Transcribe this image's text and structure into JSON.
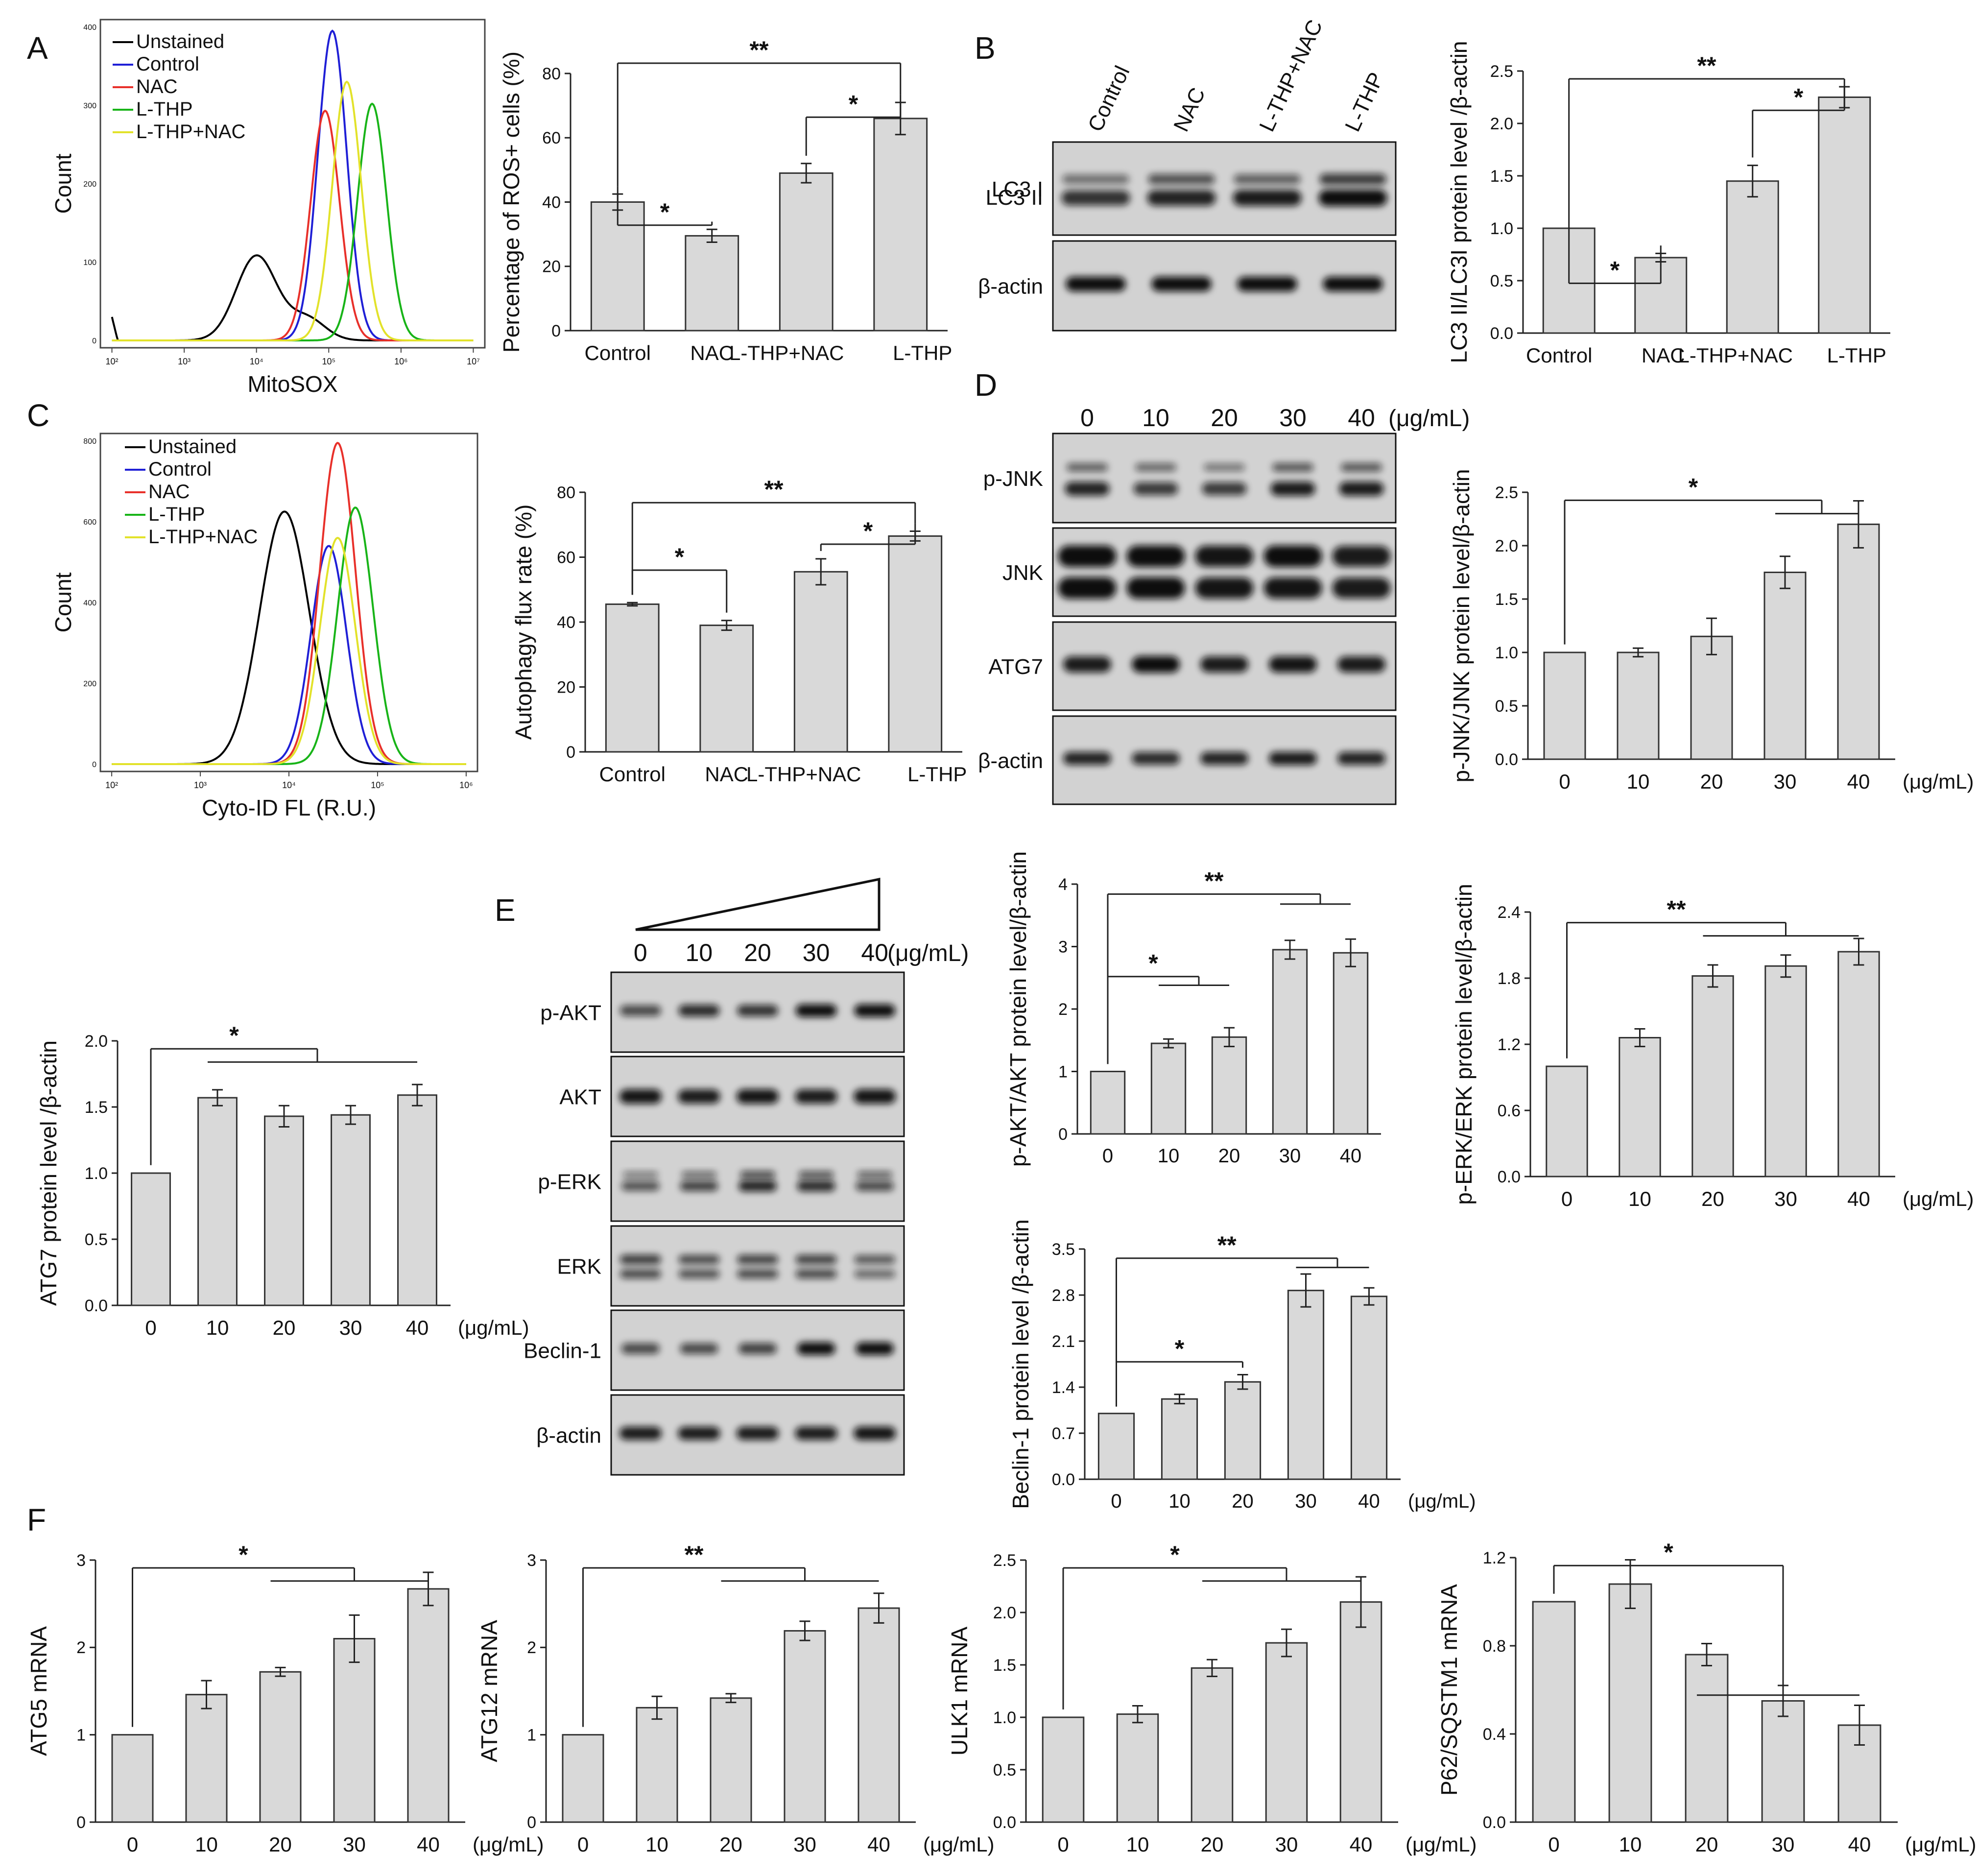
{
  "panel_letters": {
    "A": "A",
    "B": "B",
    "C": "C",
    "D": "D",
    "E": "E",
    "F": "F"
  },
  "dose_unit": "(μg/mL)",
  "chart_data": [
    {
      "id": "A_flow",
      "type": "line",
      "xlabel": "MitoSOX",
      "ylabel": "Count",
      "xtick_labels": [
        "10²",
        "10³",
        "10⁴",
        "10⁵",
        "10⁶",
        "10⁷"
      ],
      "ytick_labels": [
        "0",
        "100",
        "200",
        "300",
        "400"
      ],
      "series": [
        {
          "name": "Unstained",
          "color": "#000000",
          "peak_log": 4.0,
          "peak": 108
        },
        {
          "name": "Control",
          "color": "#1f1fd6",
          "peak_log": 5.05,
          "peak": 395
        },
        {
          "name": "NAC",
          "color": "#e8302a",
          "peak_log": 4.95,
          "peak": 293
        },
        {
          "name": "L-THP",
          "color": "#18b418",
          "peak_log": 5.6,
          "peak": 302
        },
        {
          "name": "L-THP+NAC",
          "color": "#e2e22a",
          "peak_log": 5.25,
          "peak": 330
        }
      ]
    },
    {
      "id": "A_bar",
      "type": "bar",
      "ylabel": "Percentage of ROS+ cells (%)",
      "ylim": [
        0,
        80
      ],
      "yticks": [
        0,
        20,
        40,
        60,
        80
      ],
      "categories": [
        "Control",
        "NAC",
        "L-THP+NAC",
        "L-THP"
      ],
      "values": [
        40,
        29.5,
        49,
        66
      ],
      "errors": [
        2.5,
        2,
        3,
        5
      ],
      "sig": [
        {
          "from": 0,
          "to": 1,
          "label": "*"
        },
        {
          "from": 2,
          "to": 3,
          "label": "*"
        },
        {
          "from": 0,
          "to": 3,
          "label": "**"
        }
      ]
    },
    {
      "id": "B_bar",
      "type": "bar",
      "ylabel": "LC3 II/LC3I protein level /β-actin",
      "ylim": [
        0,
        2.5
      ],
      "yticks": [
        0,
        0.5,
        1,
        1.5,
        2,
        2.5
      ],
      "ytick_labels": [
        "0.0",
        "0.5",
        "1.0",
        "1.5",
        "2.0",
        "2.5"
      ],
      "categories": [
        "Control",
        "NAC",
        "L-THP+NAC",
        "L-THP"
      ],
      "values": [
        1.0,
        0.72,
        1.45,
        2.25
      ],
      "errors": [
        0,
        0.04,
        0.15,
        0.1
      ],
      "sig": [
        {
          "from": 0,
          "to": 1,
          "label": "*"
        },
        {
          "from": 2,
          "to": 3,
          "label": "*"
        },
        {
          "from": 0,
          "to": 3,
          "label": "**"
        }
      ]
    },
    {
      "id": "C_flow",
      "type": "line",
      "xlabel": "Cyto-ID FL (R.U.)",
      "ylabel": "Count",
      "xtick_labels": [
        "10²",
        "10³",
        "10⁴",
        "10⁵",
        "10⁶"
      ],
      "ytick_labels": [
        "0",
        "200",
        "400",
        "600",
        "800"
      ],
      "series": [
        {
          "name": "Unstained",
          "color": "#000000",
          "peak_log": 3.95,
          "peak": 625
        },
        {
          "name": "Control",
          "color": "#1f1fd6",
          "peak_log": 4.45,
          "peak": 540
        },
        {
          "name": "NAC",
          "color": "#e8302a",
          "peak_log": 4.55,
          "peak": 795
        },
        {
          "name": "L-THP",
          "color": "#18b418",
          "peak_log": 4.75,
          "peak": 635
        },
        {
          "name": "L-THP+NAC",
          "color": "#e2e22a",
          "peak_log": 4.55,
          "peak": 560
        }
      ]
    },
    {
      "id": "C_bar",
      "type": "bar",
      "ylabel": "Autophagy flux rate (%)",
      "ylim": [
        0,
        80
      ],
      "yticks": [
        0,
        20,
        40,
        60,
        80
      ],
      "categories": [
        "Control",
        "NAC",
        "L-THP+NAC",
        "L-THP"
      ],
      "values": [
        45.5,
        39,
        55.5,
        66.5
      ],
      "errors": [
        0.5,
        1.5,
        4,
        1.5
      ],
      "sig": [
        {
          "from": 0,
          "to": 1,
          "label": "*"
        },
        {
          "from": 2,
          "to": 3,
          "label": "*"
        },
        {
          "from": 0,
          "to": 3,
          "label": "**"
        }
      ]
    },
    {
      "id": "D_bar",
      "type": "bar",
      "ylabel": "p-JNK/JNK protein level/β-actin",
      "ylim": [
        0,
        2.5
      ],
      "yticks": [
        0,
        0.5,
        1,
        1.5,
        2,
        2.5
      ],
      "ytick_labels": [
        "0.0",
        "0.5",
        "1.0",
        "1.5",
        "2.0",
        "2.5"
      ],
      "categories": [
        "0",
        "10",
        "20",
        "30",
        "40"
      ],
      "values": [
        1.0,
        1.0,
        1.15,
        1.75,
        2.2
      ],
      "errors": [
        0,
        0.04,
        0.17,
        0.15,
        0.22
      ],
      "sig": [
        {
          "from": 0,
          "to": [
            3,
            4
          ],
          "label": "*"
        }
      ]
    },
    {
      "id": "ATG7_bar",
      "type": "bar",
      "ylabel": "ATG7 protein level /β-actin",
      "ylim": [
        0,
        2.0
      ],
      "yticks": [
        0,
        0.5,
        1,
        1.5,
        2
      ],
      "ytick_labels": [
        "0.0",
        "0.5",
        "1.0",
        "1.5",
        "2.0"
      ],
      "categories": [
        "0",
        "10",
        "20",
        "30",
        "40"
      ],
      "values": [
        1.0,
        1.57,
        1.43,
        1.44,
        1.59
      ],
      "errors": [
        0,
        0.06,
        0.08,
        0.07,
        0.08
      ],
      "sig": [
        {
          "from": 0,
          "to": [
            1,
            4
          ],
          "label": "*"
        }
      ]
    },
    {
      "id": "E_akt",
      "type": "bar",
      "ylabel": "p-AKT/AKT protein level/β-actin",
      "ylim": [
        0,
        4
      ],
      "yticks": [
        0,
        1,
        2,
        3,
        4
      ],
      "categories": [
        "0",
        "10",
        "20",
        "30",
        "40"
      ],
      "values": [
        1.0,
        1.45,
        1.55,
        2.95,
        2.9
      ],
      "errors": [
        0,
        0.07,
        0.15,
        0.15,
        0.22
      ],
      "sig": [
        {
          "from": 0,
          "to": [
            1,
            2
          ],
          "label": "*"
        },
        {
          "from": 0,
          "to": [
            3,
            4
          ],
          "label": "**"
        }
      ]
    },
    {
      "id": "E_erk",
      "type": "bar",
      "ylabel": "p-ERK/ERK protein level/β-actin",
      "ylim": [
        0,
        2.4
      ],
      "yticks": [
        0,
        0.6,
        1.2,
        1.8,
        2.4
      ],
      "ytick_labels": [
        "0.0",
        "0.6",
        "1.2",
        "1.8",
        "2.4"
      ],
      "categories": [
        "0",
        "10",
        "20",
        "30",
        "40"
      ],
      "values": [
        1.0,
        1.26,
        1.82,
        1.91,
        2.04
      ],
      "errors": [
        0,
        0.08,
        0.1,
        0.1,
        0.12
      ],
      "sig": [
        {
          "from": 0,
          "to": [
            2,
            4
          ],
          "label": "**"
        }
      ]
    },
    {
      "id": "E_beclin",
      "type": "bar",
      "ylabel": "Beclin-1 protein level /β-actin",
      "ylim": [
        0,
        3.5
      ],
      "yticks": [
        0,
        0.7,
        1.4,
        2.1,
        2.8,
        3.5
      ],
      "ytick_labels": [
        "0.0",
        "0.7",
        "1.4",
        "2.1",
        "2.8",
        "3.5"
      ],
      "categories": [
        "0",
        "10",
        "20",
        "30",
        "40"
      ],
      "values": [
        1.0,
        1.22,
        1.48,
        2.87,
        2.78
      ],
      "errors": [
        0,
        0.07,
        0.11,
        0.25,
        0.13
      ],
      "sig": [
        {
          "from": 0,
          "to": 2,
          "label": "*"
        },
        {
          "from": 0,
          "to": [
            3,
            4
          ],
          "label": "**"
        }
      ]
    },
    {
      "id": "F_atg5",
      "type": "bar",
      "ylabel": "ATG5 mRNA",
      "ylim": [
        0,
        3
      ],
      "yticks": [
        0,
        1,
        2,
        3
      ],
      "categories": [
        "0",
        "10",
        "20",
        "30",
        "40"
      ],
      "values": [
        1.0,
        1.46,
        1.72,
        2.1,
        2.67
      ],
      "errors": [
        0,
        0.16,
        0.05,
        0.27,
        0.19
      ],
      "sig": [
        {
          "from": 0,
          "to": [
            2,
            4
          ],
          "label": "*"
        }
      ]
    },
    {
      "id": "F_atg12",
      "type": "bar",
      "ylabel": "ATG12 mRNA",
      "ylim": [
        0,
        3
      ],
      "yticks": [
        0,
        1,
        2,
        3
      ],
      "categories": [
        "0",
        "10",
        "20",
        "30",
        "40"
      ],
      "values": [
        1.0,
        1.31,
        1.42,
        2.19,
        2.45
      ],
      "errors": [
        0,
        0.13,
        0.05,
        0.11,
        0.17
      ],
      "sig": [
        {
          "from": 0,
          "to": [
            2,
            4
          ],
          "label": "**"
        }
      ]
    },
    {
      "id": "F_ulk1",
      "type": "bar",
      "ylabel": "ULK1 mRNA",
      "ylim": [
        0,
        2.5
      ],
      "yticks": [
        0,
        0.5,
        1,
        1.5,
        2,
        2.5
      ],
      "ytick_labels": [
        "0.0",
        "0.5",
        "1.0",
        "1.5",
        "2.0",
        "2.5"
      ],
      "categories": [
        "0",
        "10",
        "20",
        "30",
        "40"
      ],
      "values": [
        1.0,
        1.03,
        1.47,
        1.71,
        2.1
      ],
      "errors": [
        0,
        0.08,
        0.08,
        0.13,
        0.24
      ],
      "sig": [
        {
          "from": 0,
          "to": [
            2,
            4
          ],
          "label": "*"
        }
      ]
    },
    {
      "id": "F_p62",
      "type": "bar",
      "ylabel": "P62/SQSTM1 mRNA",
      "ylim": [
        0,
        1.2
      ],
      "yticks": [
        0,
        0.4,
        0.8,
        1.2
      ],
      "ytick_labels": [
        "0.0",
        "0.4",
        "0.8",
        "1.2"
      ],
      "categories": [
        "0",
        "10",
        "20",
        "30",
        "40"
      ],
      "values": [
        1.0,
        1.08,
        0.76,
        0.55,
        0.44
      ],
      "errors": [
        0,
        0.11,
        0.05,
        0.07,
        0.09
      ],
      "sig": [
        {
          "from": 0,
          "to": [
            2,
            4
          ],
          "label": "*"
        }
      ]
    }
  ],
  "blots": {
    "B": {
      "lanes": [
        "Control",
        "NAC",
        "L-THP+NAC",
        "L-THP"
      ],
      "rows": [
        "LC3 I\nLC3 II",
        "β-actin"
      ]
    },
    "D": {
      "lanes": [
        "0",
        "10",
        "20",
        "30",
        "40"
      ],
      "rows": [
        "p-JNK",
        "JNK",
        "ATG7",
        "β-actin"
      ]
    },
    "E": {
      "lanes": [
        "0",
        "10",
        "20",
        "30",
        "40"
      ],
      "rows": [
        "p-AKT",
        "AKT",
        "p-ERK",
        "ERK",
        "Beclin-1",
        "β-actin"
      ]
    }
  }
}
